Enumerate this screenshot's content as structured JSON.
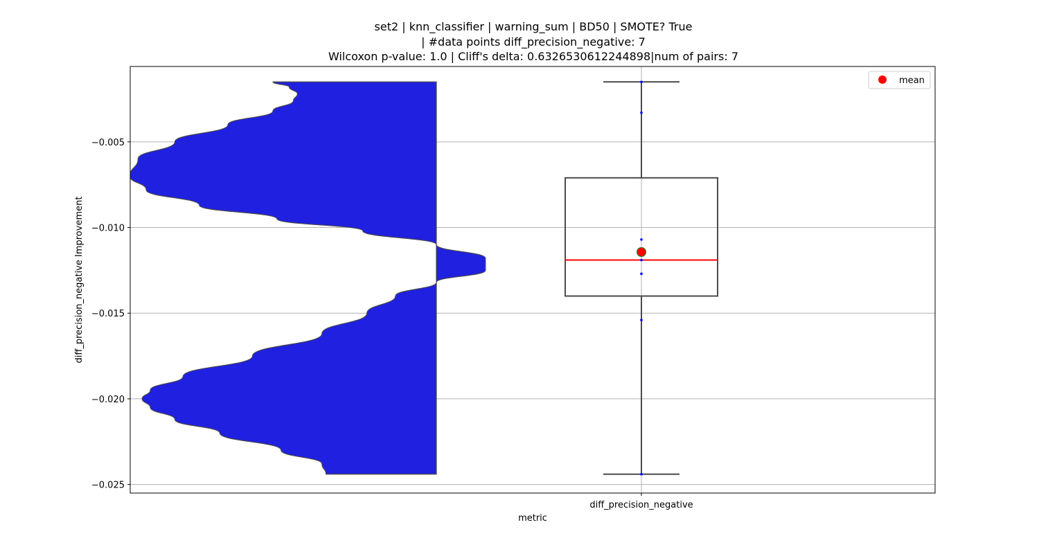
{
  "chart_data": {
    "type": "violin+box",
    "title_lines": [
      "set2 | knn_classifier | warning_sum | BD50 | SMOTE? True",
      "| #data points diff_precision_negative: 7",
      "Wilcoxon p-value: 1.0 | Cliff's delta: 0.6326530612244898|num of pairs: 7"
    ],
    "xlabel": "metric",
    "ylabel": "diff_precision_negative Improvement",
    "categories": [
      "diff_precision_negative"
    ],
    "ylim": [
      -0.0255,
      -0.0006
    ],
    "yticks": [
      -0.005,
      -0.01,
      -0.015,
      -0.02,
      -0.025
    ],
    "ytick_labels": [
      "−0.005",
      "−0.010",
      "−0.015",
      "−0.020",
      "−0.025"
    ],
    "grid": true,
    "legend": {
      "position": "top-right",
      "entries": [
        {
          "label": "mean",
          "color": "#ff0000"
        }
      ]
    },
    "points": [
      -0.0015,
      -0.0033,
      -0.0107,
      -0.0119,
      -0.0127,
      -0.0154,
      -0.0244
    ],
    "box": {
      "q1": -0.014,
      "median": -0.0119,
      "q3": -0.0071,
      "whisker_low": -0.0244,
      "whisker_high": -0.0015,
      "mean": -0.01143
    },
    "violin": {
      "color": "#2020e0",
      "profile": [
        [
          -0.0015,
          0.4
        ],
        [
          -0.0018,
          0.36
        ],
        [
          -0.0022,
          0.34
        ],
        [
          -0.0026,
          0.35
        ],
        [
          -0.0032,
          0.4
        ],
        [
          -0.004,
          0.51
        ],
        [
          -0.005,
          0.64
        ],
        [
          -0.006,
          0.73
        ],
        [
          -0.007,
          0.75
        ],
        [
          -0.0078,
          0.71
        ],
        [
          -0.0087,
          0.58
        ],
        [
          -0.0095,
          0.39
        ],
        [
          -0.0102,
          0.18
        ],
        [
          -0.011,
          0.0
        ],
        [
          -0.0118,
          -0.12
        ],
        [
          -0.0125,
          -0.12
        ],
        [
          -0.0132,
          0.0
        ],
        [
          -0.014,
          0.1
        ],
        [
          -0.015,
          0.17
        ],
        [
          -0.0162,
          0.28
        ],
        [
          -0.0175,
          0.45
        ],
        [
          -0.0187,
          0.62
        ],
        [
          -0.0195,
          0.7
        ],
        [
          -0.02,
          0.72
        ],
        [
          -0.0205,
          0.7
        ],
        [
          -0.0212,
          0.64
        ],
        [
          -0.022,
          0.53
        ],
        [
          -0.023,
          0.38
        ],
        [
          -0.0238,
          0.28
        ],
        [
          -0.0244,
          0.27
        ]
      ]
    },
    "colors": {
      "box_edge": "#4a4a4a",
      "median": "#ff0000",
      "mean_fill": "#ff0000",
      "mean_edge": "#3a7d3a",
      "points": "#0000ff",
      "grid": "#b0b0b0"
    }
  }
}
